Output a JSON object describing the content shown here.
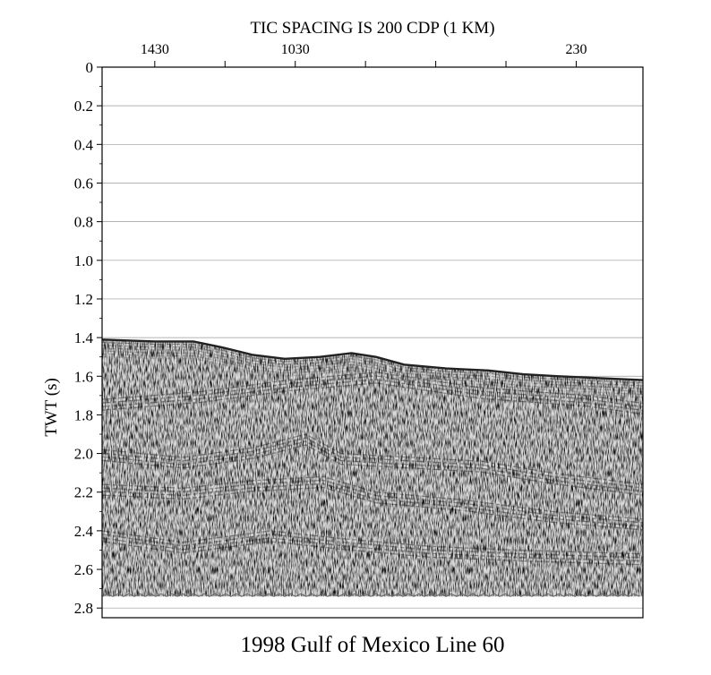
{
  "chart_data": {
    "type": "image",
    "title": "1998 Gulf of Mexico Line 60",
    "top_label": "TIC SPACING IS 200 CDP (1 KM)",
    "ylabel": "TWT (s)",
    "ylim": [
      0,
      2.85
    ],
    "y_ticks": [
      "0",
      "0.2",
      "0.4",
      "0.6",
      "0.8",
      "1.0",
      "1.2",
      "1.4",
      "1.6",
      "1.8",
      "2.0",
      "2.2",
      "2.4",
      "2.6",
      "2.8"
    ],
    "y_tick_values": [
      0,
      0.2,
      0.4,
      0.6,
      0.8,
      1.0,
      1.2,
      1.4,
      1.6,
      1.8,
      2.0,
      2.2,
      2.4,
      2.6,
      2.8
    ],
    "x_tick_labels": [
      "1430",
      "1030",
      "230"
    ],
    "x_tick_label_cdps": [
      1430,
      1030,
      230
    ],
    "x_tick_cdps": [
      1430,
      1230,
      1030,
      830,
      630,
      430,
      230
    ],
    "xlim_cdp": [
      1580,
      40
    ],
    "grid": true,
    "seafloor": [
      [
        1580,
        1.41
      ],
      [
        1430,
        1.42
      ],
      [
        1320,
        1.42
      ],
      [
        1240,
        1.45
      ],
      [
        1150,
        1.49
      ],
      [
        1060,
        1.51
      ],
      [
        960,
        1.5
      ],
      [
        870,
        1.48
      ],
      [
        800,
        1.5
      ],
      [
        720,
        1.54
      ],
      [
        600,
        1.56
      ],
      [
        480,
        1.57
      ],
      [
        380,
        1.59
      ],
      [
        280,
        1.6
      ],
      [
        160,
        1.61
      ],
      [
        40,
        1.62
      ]
    ],
    "data_bottom": 2.74,
    "reflectors": [
      [
        [
          1580,
          1.72
        ],
        [
          1300,
          1.68
        ],
        [
          1050,
          1.62
        ],
        [
          800,
          1.58
        ],
        [
          500,
          1.66
        ],
        [
          200,
          1.7
        ],
        [
          40,
          1.74
        ]
      ],
      [
        [
          1580,
          1.98
        ],
        [
          1350,
          2.02
        ],
        [
          1150,
          1.97
        ],
        [
          1000,
          1.9
        ],
        [
          900,
          2.0
        ],
        [
          700,
          2.02
        ],
        [
          500,
          2.04
        ],
        [
          300,
          2.1
        ],
        [
          40,
          2.16
        ]
      ],
      [
        [
          1580,
          2.16
        ],
        [
          1350,
          2.18
        ],
        [
          1150,
          2.14
        ],
        [
          950,
          2.12
        ],
        [
          800,
          2.2
        ],
        [
          550,
          2.24
        ],
        [
          300,
          2.3
        ],
        [
          40,
          2.34
        ]
      ],
      [
        [
          1580,
          2.4
        ],
        [
          1350,
          2.46
        ],
        [
          1100,
          2.4
        ],
        [
          900,
          2.44
        ],
        [
          650,
          2.48
        ],
        [
          400,
          2.5
        ],
        [
          40,
          2.52
        ]
      ]
    ]
  }
}
